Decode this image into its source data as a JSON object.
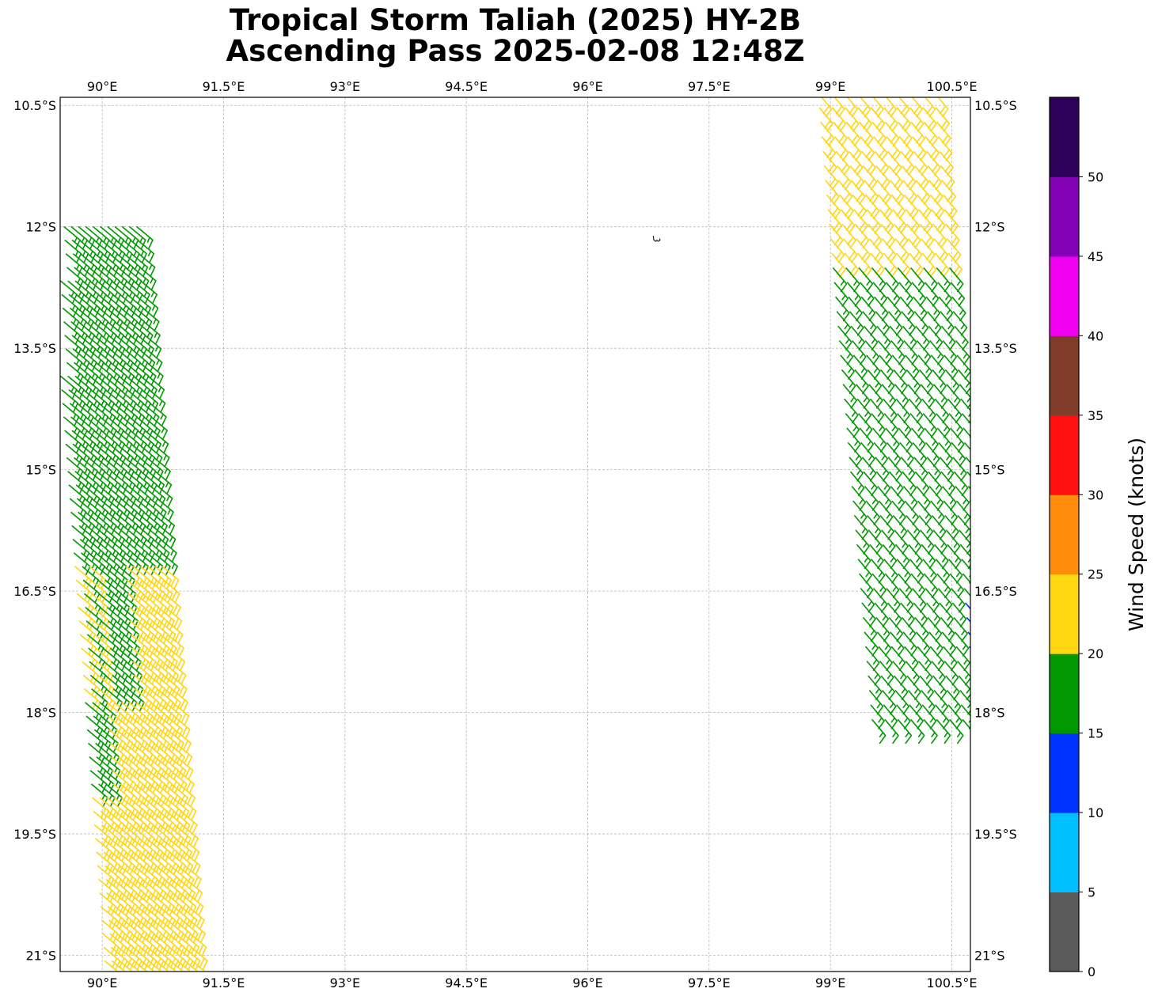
{
  "title": {
    "line1": "Tropical Storm Taliah (2025) HY-2B",
    "line2": "Ascending Pass 2025-02-08 12:48Z"
  },
  "chart_data": {
    "type": "wind-barb-map",
    "xlim": [
      89.48,
      100.73
    ],
    "ylim": [
      -21.2,
      -10.4
    ],
    "grid": true,
    "x_ticks": [
      {
        "value": 90.0,
        "label": "90°E"
      },
      {
        "value": 91.5,
        "label": "91.5°E"
      },
      {
        "value": 93.0,
        "label": "93°E"
      },
      {
        "value": 94.5,
        "label": "94.5°E"
      },
      {
        "value": 96.0,
        "label": "96°E"
      },
      {
        "value": 97.5,
        "label": "97.5°E"
      },
      {
        "value": 99.0,
        "label": "99°E"
      },
      {
        "value": 100.5,
        "label": "100.5°E"
      }
    ],
    "y_ticks": [
      {
        "value": -10.5,
        "label": "10.5°S"
      },
      {
        "value": -12.0,
        "label": "12°S"
      },
      {
        "value": -13.5,
        "label": "13.5°S"
      },
      {
        "value": -15.0,
        "label": "15°S"
      },
      {
        "value": -16.5,
        "label": "16.5°S"
      },
      {
        "value": -18.0,
        "label": "18°S"
      },
      {
        "value": -19.5,
        "label": "19.5°S"
      },
      {
        "value": -21.0,
        "label": "21°S"
      }
    ],
    "colorbar": {
      "label": "Wind Speed (knots)",
      "tick_labels": [
        "0",
        "5",
        "10",
        "15",
        "20",
        "25",
        "30",
        "35",
        "40",
        "45",
        "50"
      ],
      "bins": [
        {
          "from": 0,
          "to": 5,
          "color": "#5a5a5a"
        },
        {
          "from": 5,
          "to": 10,
          "color": "#00bfff"
        },
        {
          "from": 10,
          "to": 15,
          "color": "#0033ff"
        },
        {
          "from": 15,
          "to": 20,
          "color": "#009900"
        },
        {
          "from": 20,
          "to": 25,
          "color": "#ffd60f"
        },
        {
          "from": 25,
          "to": 30,
          "color": "#ff8c0a"
        },
        {
          "from": 30,
          "to": 35,
          "color": "#ff1010"
        },
        {
          "from": 35,
          "to": 40,
          "color": "#7f3c28"
        },
        {
          "from": 40,
          "to": 45,
          "color": "#f000f0"
        },
        {
          "from": 45,
          "to": 50,
          "color": "#8400b4"
        },
        {
          "from": 50,
          "to": 55,
          "color": "#2d0059"
        }
      ]
    },
    "swaths": [
      {
        "name": "west",
        "rows": 56,
        "cols": 13,
        "lat_start": -12.0,
        "lat_step": -0.168,
        "lon_start": 89.35,
        "col_dx": 0.09,
        "row_dx": 0.0127,
        "direction_from_deg": 130,
        "speed_rule": "lat>-16.2:18; lat>-17.8:(col<4?(col%2==0?22:17):(col<7?17:22)); lat>-18.9:(col<3?17:22); else:22"
      },
      {
        "name": "east",
        "rows": 44,
        "cols": 10,
        "lat_start": -10.35,
        "lat_step": -0.18,
        "lon_start": 98.85,
        "col_dx": 0.16,
        "row_dx": 0.0155,
        "direction_from_deg": 140,
        "speed_rule": "lat>-12.4:22; lat>-16.6:18; else:(col>=8?13:18)"
      }
    ],
    "island": {
      "name": "",
      "lon": 96.85,
      "lat": -12.15
    }
  }
}
